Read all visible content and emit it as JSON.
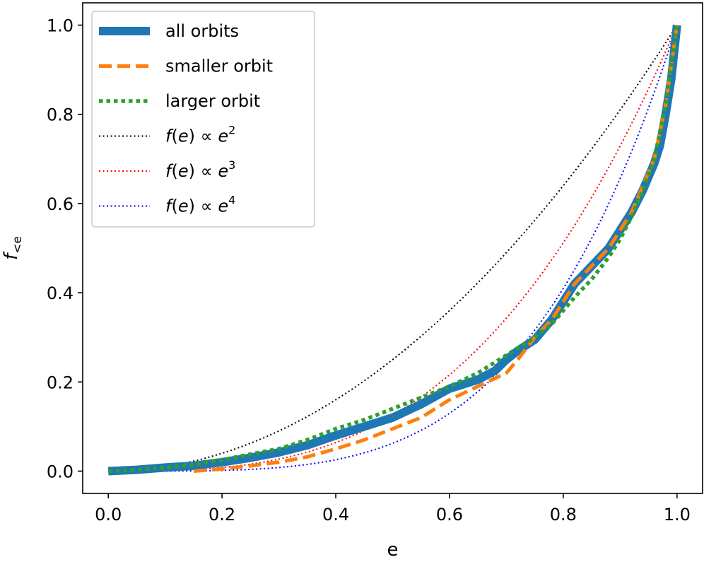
{
  "chart_data": {
    "type": "line",
    "title": "",
    "xlabel": "e",
    "ylabel_main": "f",
    "ylabel_sub": "<e",
    "xlim": [
      -0.045,
      1.045
    ],
    "ylim": [
      -0.05,
      1.05
    ],
    "xticks": [
      0.0,
      0.2,
      0.4,
      0.6,
      0.8,
      1.0
    ],
    "xtick_labels": [
      "0.0",
      "0.2",
      "0.4",
      "0.6",
      "0.8",
      "1.0"
    ],
    "yticks": [
      0.0,
      0.2,
      0.4,
      0.6,
      0.8,
      1.0
    ],
    "ytick_labels": [
      "0.0",
      "0.2",
      "0.4",
      "0.6",
      "0.8",
      "1.0"
    ],
    "legend_position": "top-left",
    "series": [
      {
        "name": "all orbits",
        "label_text": "all orbits",
        "color": "#1f77b4",
        "style": "solid-thick",
        "x": [
          0.0,
          0.05,
          0.1,
          0.15,
          0.2,
          0.25,
          0.3,
          0.35,
          0.4,
          0.45,
          0.5,
          0.55,
          0.6,
          0.65,
          0.68,
          0.7,
          0.72,
          0.75,
          0.78,
          0.8,
          0.82,
          0.85,
          0.88,
          0.9,
          0.92,
          0.94,
          0.96,
          0.97,
          0.98,
          0.99,
          1.0
        ],
        "y": [
          0.0,
          0.003,
          0.008,
          0.012,
          0.02,
          0.03,
          0.042,
          0.058,
          0.08,
          0.1,
          0.12,
          0.15,
          0.185,
          0.205,
          0.225,
          0.25,
          0.27,
          0.295,
          0.34,
          0.38,
          0.42,
          0.46,
          0.5,
          0.54,
          0.58,
          0.63,
          0.69,
          0.73,
          0.8,
          0.88,
          1.0
        ]
      },
      {
        "name": "smaller orbit",
        "label_text": "smaller orbit",
        "color": "#ff7f0e",
        "style": "dashed",
        "x": [
          0.15,
          0.2,
          0.25,
          0.3,
          0.35,
          0.4,
          0.45,
          0.5,
          0.55,
          0.6,
          0.65,
          0.7,
          0.72,
          0.75,
          0.78,
          0.8,
          0.82,
          0.85,
          0.88,
          0.9,
          0.92,
          0.94,
          0.96,
          0.98,
          1.0
        ],
        "y": [
          0.0,
          0.005,
          0.012,
          0.02,
          0.032,
          0.05,
          0.07,
          0.095,
          0.12,
          0.16,
          0.19,
          0.22,
          0.25,
          0.3,
          0.34,
          0.38,
          0.42,
          0.46,
          0.5,
          0.54,
          0.58,
          0.64,
          0.7,
          0.82,
          1.0
        ]
      },
      {
        "name": "larger orbit",
        "label_text": "larger orbit",
        "color": "#2ca02c",
        "style": "dotted-thick",
        "x": [
          0.0,
          0.05,
          0.1,
          0.15,
          0.2,
          0.25,
          0.3,
          0.35,
          0.4,
          0.45,
          0.5,
          0.55,
          0.6,
          0.65,
          0.7,
          0.75,
          0.78,
          0.8,
          0.82,
          0.85,
          0.88,
          0.9,
          0.92,
          0.94,
          0.96,
          0.98,
          1.0
        ],
        "y": [
          0.0,
          0.003,
          0.008,
          0.015,
          0.025,
          0.038,
          0.05,
          0.07,
          0.095,
          0.115,
          0.14,
          0.165,
          0.19,
          0.22,
          0.26,
          0.3,
          0.33,
          0.36,
          0.39,
          0.43,
          0.48,
          0.52,
          0.57,
          0.63,
          0.7,
          0.82,
          1.0
        ]
      },
      {
        "name": "f(e) ∝ e^2",
        "label_text": "f(e) ∝ e",
        "label_sup": "2",
        "color": "#000000",
        "style": "dotted",
        "power": 2
      },
      {
        "name": "f(e) ∝ e^3",
        "label_text": "f(e) ∝ e",
        "label_sup": "3",
        "color": "#ff0000",
        "style": "dotted",
        "power": 3
      },
      {
        "name": "f(e) ∝ e^4",
        "label_text": "f(e) ∝ e",
        "label_sup": "4",
        "color": "#0000ff",
        "style": "dotted",
        "power": 4
      }
    ]
  }
}
